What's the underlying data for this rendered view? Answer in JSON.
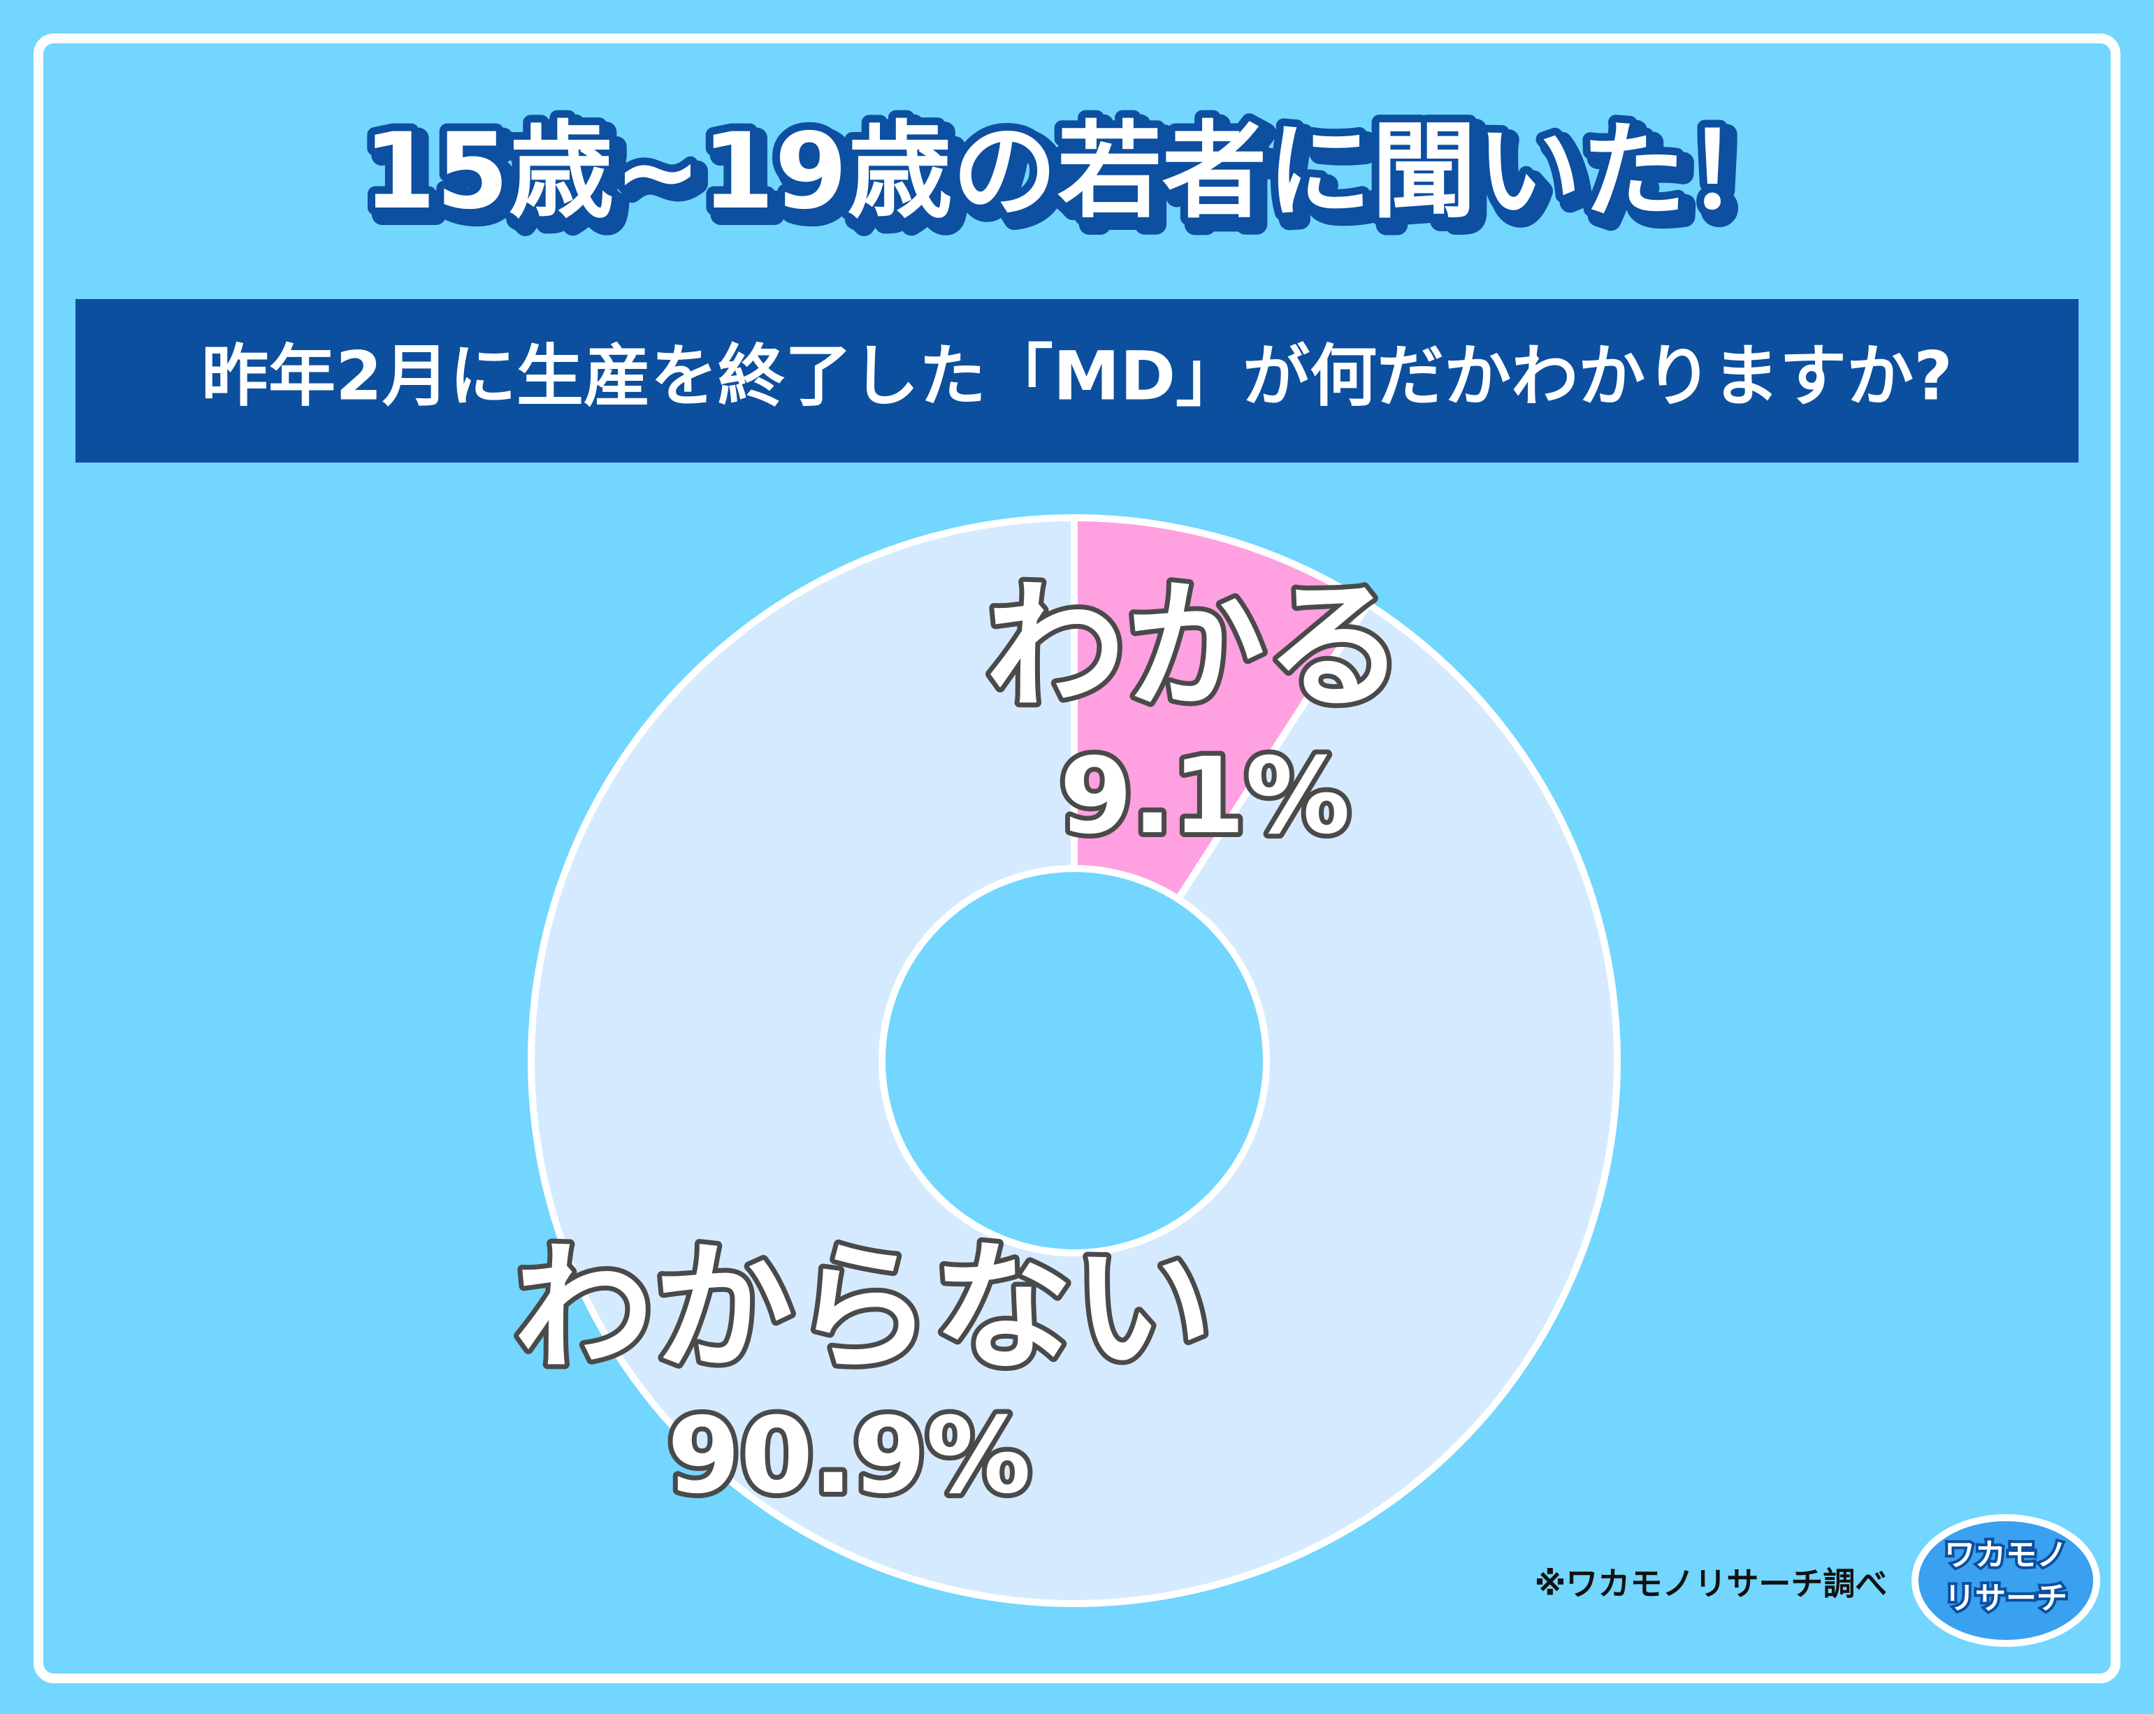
{
  "chart_data": {
    "type": "pie",
    "title": "15歳~19歳の若者に聞いた！",
    "subtitle": "昨年2月に生産を終了した「MD」が何だかわかりますか?",
    "categories": [
      "わかる",
      "わからない"
    ],
    "values": [
      9.1,
      90.9
    ],
    "value_labels": [
      "9.1%",
      "90.9%"
    ],
    "colors": [
      "#ffa0e0",
      "#d6eaff"
    ],
    "donut": true,
    "source": "※ワカモノリサーチ調べ",
    "logo": [
      "ワカモノ",
      "リサーチ"
    ]
  }
}
